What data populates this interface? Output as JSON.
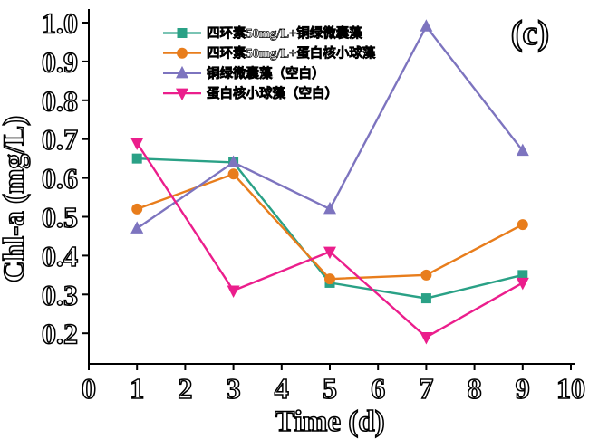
{
  "figure": {
    "panel_label": "(c)",
    "background_color": "#ffffff",
    "text_color": "#000000",
    "text_style": "hollow-outline-serif"
  },
  "chart_data": {
    "type": "line",
    "title": "",
    "xlabel": "Time (d)",
    "ylabel": "Chl-a (mg/L)",
    "xlim": [
      0,
      10
    ],
    "ylim": [
      0.2,
      1.0
    ],
    "x_ticks": [
      0,
      1,
      2,
      3,
      4,
      5,
      6,
      7,
      8,
      9,
      10
    ],
    "y_ticks": [
      0.2,
      0.3,
      0.4,
      0.5,
      0.6,
      0.7,
      0.8,
      0.9,
      1.0
    ],
    "grid": false,
    "legend_position": "top-left-inside",
    "x": [
      1,
      3,
      5,
      7,
      9
    ],
    "series": [
      {
        "name": "四环素50mg/L+铜绿微囊藻",
        "marker": "square",
        "color": "#2AA186",
        "values": [
          0.65,
          0.64,
          0.33,
          0.29,
          0.35
        ]
      },
      {
        "name": "四环素50mg/L+蛋白核小球藻",
        "marker": "circle",
        "color": "#E87D1C",
        "values": [
          0.52,
          0.61,
          0.34,
          0.35,
          0.48
        ]
      },
      {
        "name": "铜绿微囊藻（空白）",
        "marker": "triangle-up",
        "color": "#7D74BF",
        "values": [
          0.47,
          0.64,
          0.52,
          0.99,
          0.67
        ]
      },
      {
        "name": "蛋白核小球藻（空白）",
        "marker": "triangle-down",
        "color": "#EB1E8C",
        "values": [
          0.69,
          0.31,
          0.41,
          0.19,
          0.33
        ]
      }
    ],
    "annotations": [
      {
        "text": "(c)",
        "position": "top-right"
      }
    ]
  }
}
